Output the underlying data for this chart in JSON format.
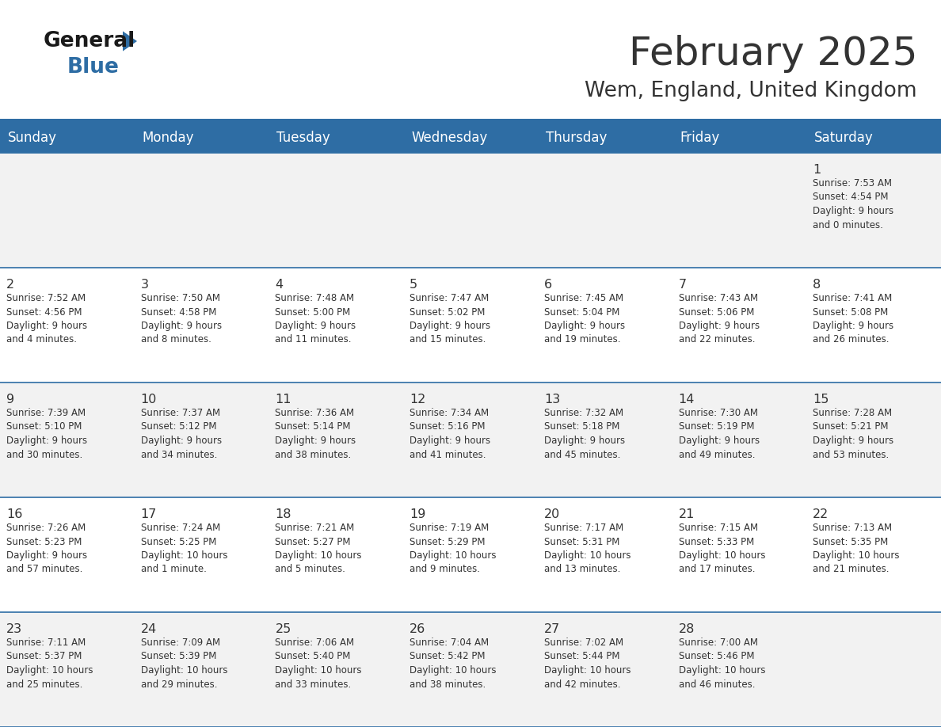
{
  "title": "February 2025",
  "subtitle": "Wem, England, United Kingdom",
  "header_bg": "#2E6DA4",
  "header_text_color": "#FFFFFF",
  "cell_bg_odd": "#F2F2F2",
  "cell_bg_even": "#FFFFFF",
  "border_color": "#2E6DA4",
  "text_color": "#333333",
  "days_of_week": [
    "Sunday",
    "Monday",
    "Tuesday",
    "Wednesday",
    "Thursday",
    "Friday",
    "Saturday"
  ],
  "logo_general_color": "#1a1a1a",
  "logo_blue_color": "#2E6DA4",
  "calendar_data": [
    [
      {
        "day": "",
        "info": ""
      },
      {
        "day": "",
        "info": ""
      },
      {
        "day": "",
        "info": ""
      },
      {
        "day": "",
        "info": ""
      },
      {
        "day": "",
        "info": ""
      },
      {
        "day": "",
        "info": ""
      },
      {
        "day": "1",
        "info": "Sunrise: 7:53 AM\nSunset: 4:54 PM\nDaylight: 9 hours\nand 0 minutes."
      }
    ],
    [
      {
        "day": "2",
        "info": "Sunrise: 7:52 AM\nSunset: 4:56 PM\nDaylight: 9 hours\nand 4 minutes."
      },
      {
        "day": "3",
        "info": "Sunrise: 7:50 AM\nSunset: 4:58 PM\nDaylight: 9 hours\nand 8 minutes."
      },
      {
        "day": "4",
        "info": "Sunrise: 7:48 AM\nSunset: 5:00 PM\nDaylight: 9 hours\nand 11 minutes."
      },
      {
        "day": "5",
        "info": "Sunrise: 7:47 AM\nSunset: 5:02 PM\nDaylight: 9 hours\nand 15 minutes."
      },
      {
        "day": "6",
        "info": "Sunrise: 7:45 AM\nSunset: 5:04 PM\nDaylight: 9 hours\nand 19 minutes."
      },
      {
        "day": "7",
        "info": "Sunrise: 7:43 AM\nSunset: 5:06 PM\nDaylight: 9 hours\nand 22 minutes."
      },
      {
        "day": "8",
        "info": "Sunrise: 7:41 AM\nSunset: 5:08 PM\nDaylight: 9 hours\nand 26 minutes."
      }
    ],
    [
      {
        "day": "9",
        "info": "Sunrise: 7:39 AM\nSunset: 5:10 PM\nDaylight: 9 hours\nand 30 minutes."
      },
      {
        "day": "10",
        "info": "Sunrise: 7:37 AM\nSunset: 5:12 PM\nDaylight: 9 hours\nand 34 minutes."
      },
      {
        "day": "11",
        "info": "Sunrise: 7:36 AM\nSunset: 5:14 PM\nDaylight: 9 hours\nand 38 minutes."
      },
      {
        "day": "12",
        "info": "Sunrise: 7:34 AM\nSunset: 5:16 PM\nDaylight: 9 hours\nand 41 minutes."
      },
      {
        "day": "13",
        "info": "Sunrise: 7:32 AM\nSunset: 5:18 PM\nDaylight: 9 hours\nand 45 minutes."
      },
      {
        "day": "14",
        "info": "Sunrise: 7:30 AM\nSunset: 5:19 PM\nDaylight: 9 hours\nand 49 minutes."
      },
      {
        "day": "15",
        "info": "Sunrise: 7:28 AM\nSunset: 5:21 PM\nDaylight: 9 hours\nand 53 minutes."
      }
    ],
    [
      {
        "day": "16",
        "info": "Sunrise: 7:26 AM\nSunset: 5:23 PM\nDaylight: 9 hours\nand 57 minutes."
      },
      {
        "day": "17",
        "info": "Sunrise: 7:24 AM\nSunset: 5:25 PM\nDaylight: 10 hours\nand 1 minute."
      },
      {
        "day": "18",
        "info": "Sunrise: 7:21 AM\nSunset: 5:27 PM\nDaylight: 10 hours\nand 5 minutes."
      },
      {
        "day": "19",
        "info": "Sunrise: 7:19 AM\nSunset: 5:29 PM\nDaylight: 10 hours\nand 9 minutes."
      },
      {
        "day": "20",
        "info": "Sunrise: 7:17 AM\nSunset: 5:31 PM\nDaylight: 10 hours\nand 13 minutes."
      },
      {
        "day": "21",
        "info": "Sunrise: 7:15 AM\nSunset: 5:33 PM\nDaylight: 10 hours\nand 17 minutes."
      },
      {
        "day": "22",
        "info": "Sunrise: 7:13 AM\nSunset: 5:35 PM\nDaylight: 10 hours\nand 21 minutes."
      }
    ],
    [
      {
        "day": "23",
        "info": "Sunrise: 7:11 AM\nSunset: 5:37 PM\nDaylight: 10 hours\nand 25 minutes."
      },
      {
        "day": "24",
        "info": "Sunrise: 7:09 AM\nSunset: 5:39 PM\nDaylight: 10 hours\nand 29 minutes."
      },
      {
        "day": "25",
        "info": "Sunrise: 7:06 AM\nSunset: 5:40 PM\nDaylight: 10 hours\nand 33 minutes."
      },
      {
        "day": "26",
        "info": "Sunrise: 7:04 AM\nSunset: 5:42 PM\nDaylight: 10 hours\nand 38 minutes."
      },
      {
        "day": "27",
        "info": "Sunrise: 7:02 AM\nSunset: 5:44 PM\nDaylight: 10 hours\nand 42 minutes."
      },
      {
        "day": "28",
        "info": "Sunrise: 7:00 AM\nSunset: 5:46 PM\nDaylight: 10 hours\nand 46 minutes."
      },
      {
        "day": "",
        "info": ""
      }
    ]
  ]
}
